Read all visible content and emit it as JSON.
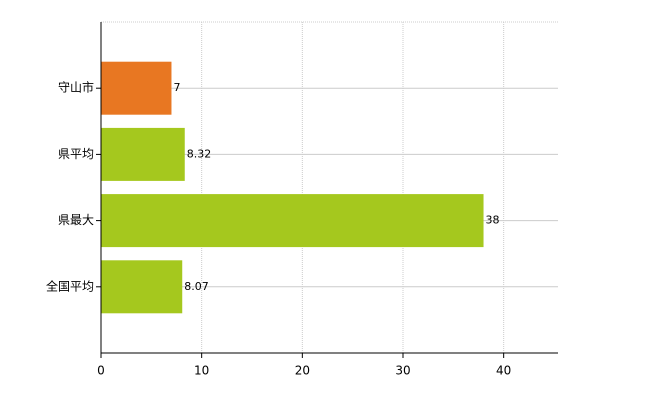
{
  "chart_data": {
    "type": "bar",
    "orientation": "horizontal",
    "categories": [
      "守山市",
      "県平均",
      "県最大",
      "全国平均"
    ],
    "values": [
      7,
      8.32,
      38,
      8.07
    ],
    "colors": [
      "#e87722",
      "#a5c81e",
      "#a5c81e",
      "#a5c81e"
    ],
    "xlim": [
      0,
      45
    ],
    "xticks": [
      0,
      10,
      20,
      30,
      40
    ],
    "grid": true
  }
}
